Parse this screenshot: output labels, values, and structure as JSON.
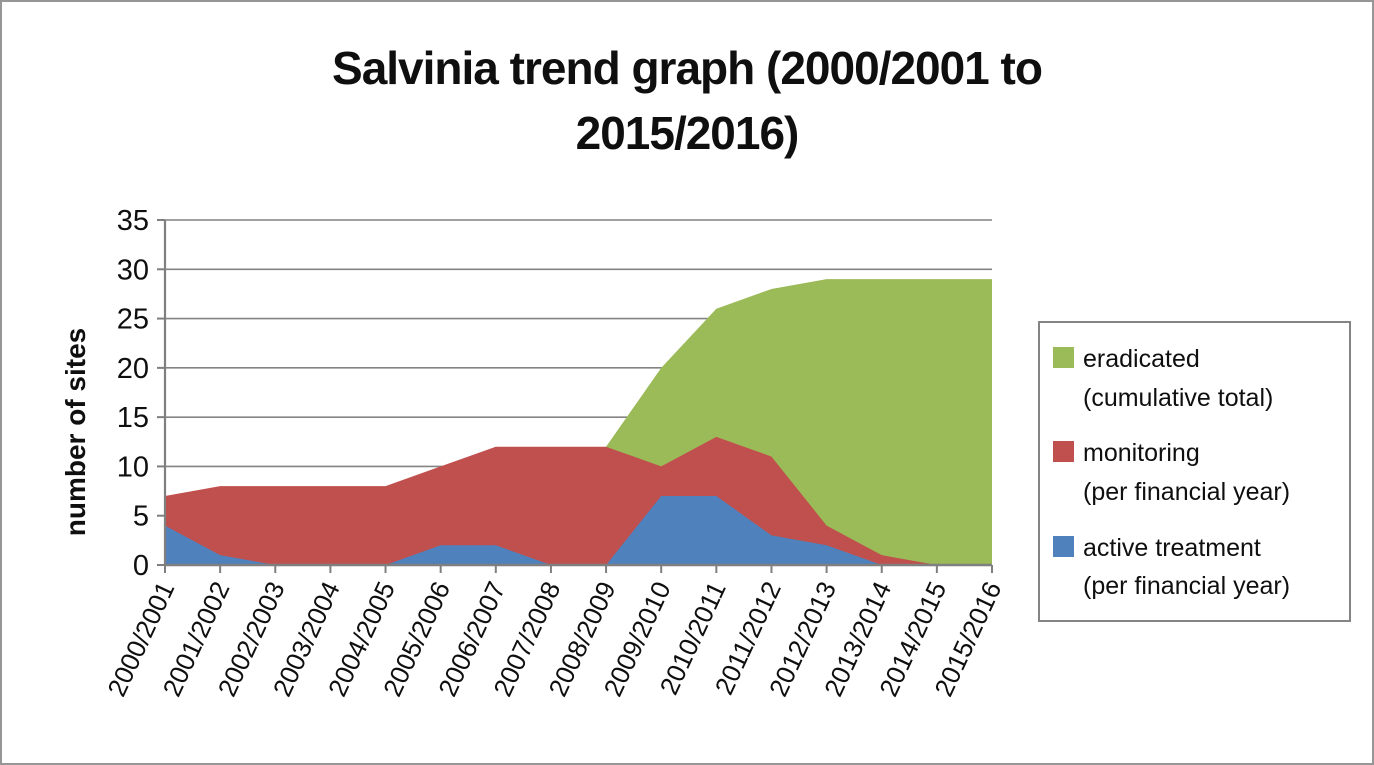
{
  "title": {
    "full": "Salvinia trend graph (2000/2001 to 2015/2016)",
    "line1": "Salvinia trend graph (2000/2001 to",
    "line2": "2015/2016)"
  },
  "chart_data": {
    "type": "area",
    "stacking": "overlap",
    "title": "Salvinia trend graph (2000/2001 to 2015/2016)",
    "xlabel": "",
    "ylabel": "number of sites",
    "ylim": [
      0,
      35
    ],
    "y_ticks": [
      0,
      5,
      10,
      15,
      20,
      25,
      30,
      35
    ],
    "grid": "horizontal",
    "legend_position": "right",
    "categories": [
      "2000/2001",
      "2001/2002",
      "2002/2003",
      "2003/2004",
      "2004/2005",
      "2005/2006",
      "2006/2007",
      "2007/2008",
      "2008/2009",
      "2009/2010",
      "2010/2011",
      "2011/2012",
      "2012/2013",
      "2013/2014",
      "2014/2015",
      "2015/2016"
    ],
    "series": [
      {
        "name": "eradicated",
        "qualifier": "(cumulative total)",
        "color": "#9BBB59",
        "values": [
          0,
          0,
          0,
          0,
          0,
          0,
          0,
          0,
          12,
          20,
          26,
          28,
          29,
          29,
          29,
          29
        ]
      },
      {
        "name": "monitoring",
        "qualifier": "(per financial year)",
        "color": "#C0504D",
        "values": [
          7,
          8,
          8,
          8,
          8,
          10,
          12,
          12,
          12,
          10,
          13,
          11,
          4,
          1,
          0,
          0
        ]
      },
      {
        "name": "active treatment",
        "qualifier": "(per financial year)",
        "color": "#4F81BD",
        "values": [
          4,
          1,
          0,
          0,
          0,
          2,
          2,
          0,
          0,
          7,
          7,
          3,
          2,
          0,
          0,
          0
        ]
      }
    ],
    "axis_color": "#7F7F7F",
    "grid_color": "#848484"
  },
  "legend": {
    "entries": [
      {
        "line1": "eradicated",
        "line2": "(cumulative total)"
      },
      {
        "line1": "monitoring",
        "line2": "(per financial year)"
      },
      {
        "line1": "active treatment",
        "line2": "(per financial year)"
      }
    ]
  }
}
